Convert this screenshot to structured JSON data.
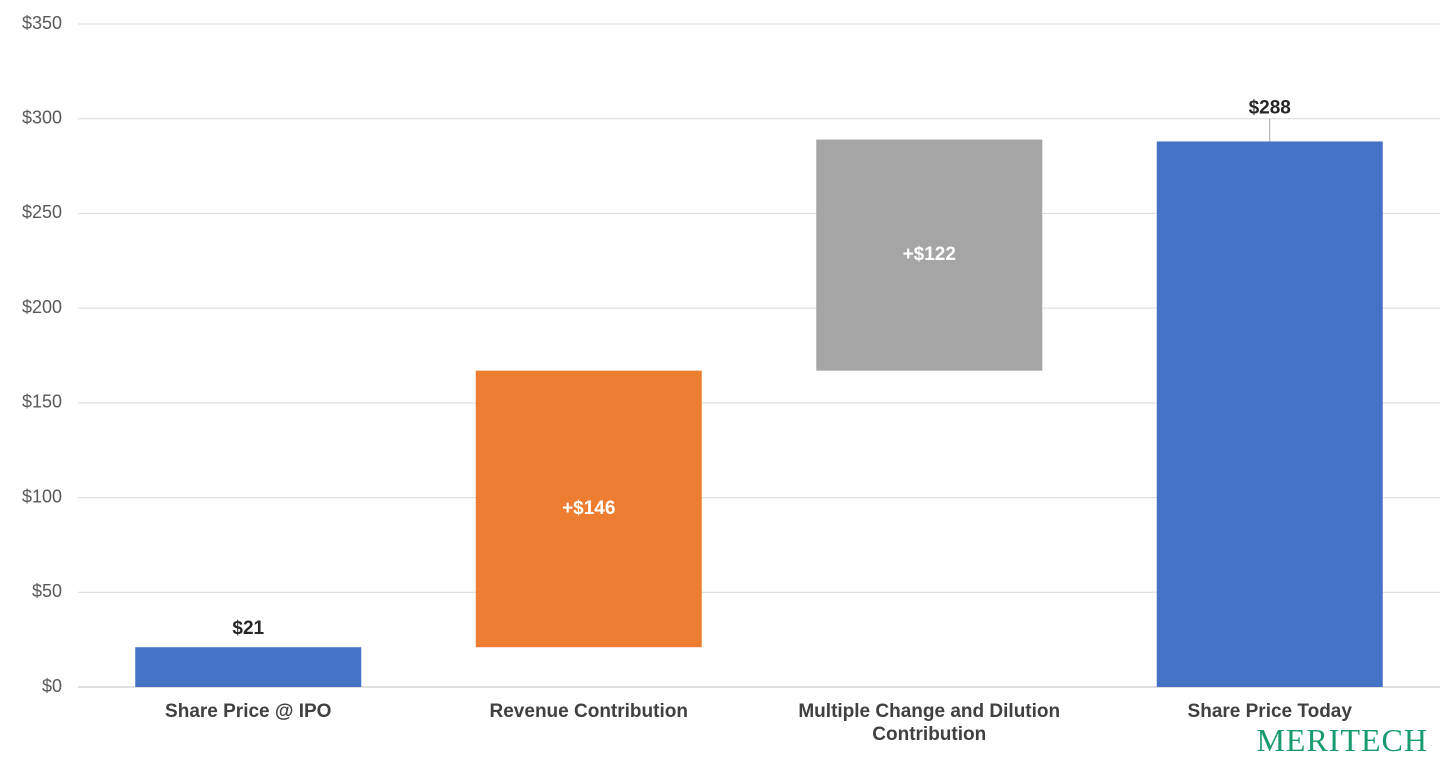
{
  "chart_data": {
    "type": "waterfall",
    "categories": [
      "Share Price @ IPO",
      "Revenue Contribution",
      "Multiple Change and Dilution Contribution",
      "Share Price Today"
    ],
    "values": [
      21,
      146,
      122,
      288
    ],
    "value_labels": [
      "$21",
      "+$146",
      "+$122",
      "$288"
    ],
    "kinds": [
      "total",
      "delta",
      "delta",
      "total"
    ],
    "colors": [
      "#4472c4",
      "#ed7d31",
      "#a5a5a5",
      "#4472c4"
    ],
    "ylim": [
      0,
      350
    ],
    "yticks": [
      {
        "value": 0,
        "label": "$0"
      },
      {
        "value": 50,
        "label": "$50"
      },
      {
        "value": 100,
        "label": "$100"
      },
      {
        "value": 150,
        "label": "$150"
      },
      {
        "value": 200,
        "label": "$200"
      },
      {
        "value": 250,
        "label": "$250"
      },
      {
        "value": 300,
        "label": "$300"
      },
      {
        "value": 350,
        "label": "$350"
      }
    ],
    "grid": true,
    "logo": "MERITECH"
  }
}
